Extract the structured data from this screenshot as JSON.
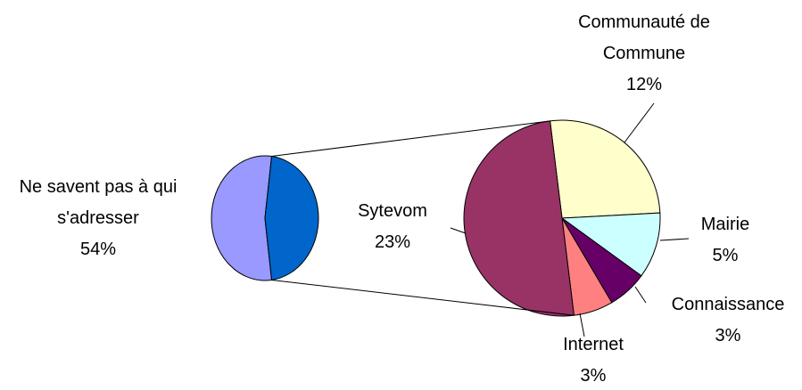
{
  "chart_data": {
    "type": "pie-of-pie",
    "categories": [
      "Ne savent pas à qui s'adresser",
      "Communauté de Commune",
      "Mairie",
      "Connaissance",
      "Internet",
      "Sytevom"
    ],
    "values": [
      54,
      12,
      5,
      3,
      3,
      23
    ],
    "value_labels": [
      "54%",
      "12%",
      "5%",
      "3%",
      "3%",
      "23%"
    ],
    "colors": [
      "#9999ff",
      "#ffffcc",
      "#ccffff",
      "#660066",
      "#ff8080",
      "#993366"
    ],
    "other_color": "#0066cc"
  }
}
